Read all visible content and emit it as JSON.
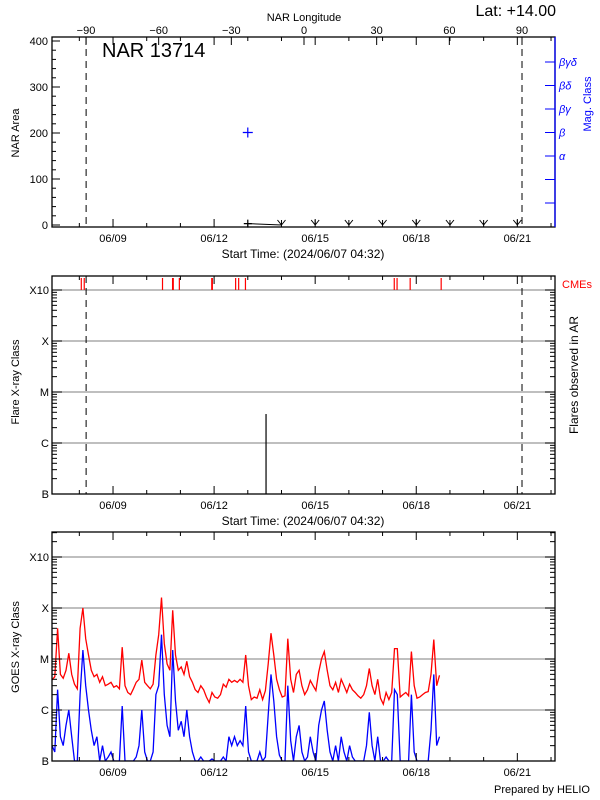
{
  "lat_label": "Lat: +14.00",
  "prepared_by": "Prepared by HELIO",
  "chart_data": [
    {
      "type": "scatter",
      "title": "NAR 13714",
      "top_axis_label": "NAR Longitude",
      "top_ticks": [
        -90,
        -60,
        -30,
        0,
        30,
        60,
        90
      ],
      "longitude_limits_marked": [
        -90,
        90
      ],
      "limb_crossing_times": [
        "2024-06-08T04:50",
        "2024-06-21T03:20"
      ],
      "ylabel": "NAR Area",
      "ylim": [
        -5,
        410
      ],
      "yticks": [
        0,
        100,
        200,
        300,
        400
      ],
      "right_axis_label": "Mag. Class",
      "right_axis_color": "#0000ff",
      "mag_classes": [
        "α",
        "β",
        "βγ",
        "βδ",
        "βγδ"
      ],
      "xlabel": "Start Time: (2024/06/07 04:32)",
      "xlim": [
        "2024-06-07T04:32",
        "2024-06-22T02:50"
      ],
      "xticks": [
        "06/09",
        "06/12",
        "06/15",
        "06/18",
        "06/21"
      ],
      "area_series": {
        "times": [
          "2024-06-13T00:00",
          "2024-06-14T00:00",
          "2024-06-15T00:00",
          "2024-06-16T00:00",
          "2024-06-17T00:00",
          "2024-06-18T00:00",
          "2024-06-19T00:00",
          "2024-06-20T00:00",
          "2024-06-21T00:00"
        ],
        "values": [
          3,
          0,
          0,
          0,
          0,
          0,
          0,
          0,
          0
        ]
      },
      "mag_series": {
        "times": [
          "2024-06-13T00:00"
        ],
        "values": [
          "β"
        ]
      }
    },
    {
      "type": "bar",
      "ylabel": "Flare X-ray Class",
      "right_label": "Flares observed in AR",
      "cme_label": "CMEs",
      "cme_color": "#ff0000",
      "y_scale": "log",
      "ylim_flux": [
        1e-07,
        0.0019
      ],
      "classes": [
        {
          "label": "B",
          "flux": 1e-07
        },
        {
          "label": "C",
          "flux": 1e-06
        },
        {
          "label": "M",
          "flux": 1e-05
        },
        {
          "label": "X",
          "flux": 0.0001
        },
        {
          "label": "X10",
          "flux": 0.001
        }
      ],
      "grid": true,
      "xlabel": "Start Time: (2024/06/07 04:32)",
      "xlim": [
        "2024-06-07T04:32",
        "2024-06-22T02:50"
      ],
      "xticks": [
        "06/09",
        "06/12",
        "06/15",
        "06/18",
        "06/21"
      ],
      "flares": [
        {
          "time": "2024-06-13T13:00",
          "flux": 3.7e-06
        }
      ],
      "cmes": [
        "2024-06-08T01:24",
        "2024-06-08T03:30",
        "2024-06-10T11:15",
        "2024-06-10T18:25",
        "2024-06-10T18:55",
        "2024-06-10T23:15",
        "2024-06-11T22:20",
        "2024-06-11T22:45",
        "2024-06-12T15:20",
        "2024-06-12T17:30",
        "2024-06-12T22:20",
        "2024-06-17T08:20",
        "2024-06-17T10:20",
        "2024-06-17T19:40",
        "2024-06-18T17:45"
      ]
    },
    {
      "type": "line",
      "ylabel": "GOES X-ray Class",
      "y_scale": "log",
      "ylim_flux": [
        1e-07,
        0.0031
      ],
      "classes": [
        {
          "label": "B",
          "flux": 1e-07
        },
        {
          "label": "C",
          "flux": 1e-06
        },
        {
          "label": "M",
          "flux": 1e-05
        },
        {
          "label": "X",
          "flux": 0.0001
        },
        {
          "label": "X10",
          "flux": 0.001
        }
      ],
      "grid": true,
      "xlim": [
        "2024-06-07T04:32",
        "2024-06-22T02:50"
      ],
      "xticks": [
        "06/09",
        "06/12",
        "06/15",
        "06/18",
        "06/21"
      ],
      "series_start": "2024-06-07T04:32",
      "series_step_hours": 2,
      "series": [
        {
          "color": "#ff0000",
          "values": [
            3.9e-06,
            4.5e-06,
            4e-05,
            5e-06,
            4.2e-06,
            6e-06,
            1.3e-05,
            5e-06,
            3.2e-06,
            2.6e-06,
            4e-05,
            0.0001,
            2.5e-05,
            1.2e-05,
            6e-06,
            4.5e-06,
            5e-06,
            3.5e-06,
            4.5e-06,
            3e-06,
            3.2e-06,
            3.5e-06,
            2.8e-06,
            3e-06,
            2.6e-06,
            1.7e-05,
            3e-06,
            2.2e-06,
            2e-06,
            2.6e-06,
            3.5e-06,
            4e-06,
            9.5e-06,
            3.5e-06,
            3e-06,
            2.6e-06,
            3.2e-06,
            1.2e-05,
            3e-05,
            0.00016,
            2e-05,
            8e-06,
            6e-06,
            9e-05,
            1.2e-05,
            6e-06,
            7e-06,
            5e-06,
            9e-06,
            4.5e-06,
            3.5e-06,
            2.5e-06,
            2.2e-06,
            3e-06,
            2.5e-06,
            1.8e-06,
            1.4e-06,
            2.2e-06,
            1.8e-06,
            1.7e-06,
            2e-06,
            3.2e-06,
            2.8e-06,
            4e-06,
            3.5e-06,
            3.8e-06,
            3.5e-06,
            4e-06,
            3.5e-06,
            1.2e-05,
            3e-06,
            1.6e-06,
            1.8e-06,
            1.7e-06,
            2.5e-06,
            1.6e-06,
            2.4e-06,
            8e-06,
            3.2e-05,
            1.2e-05,
            4e-06,
            2.5e-06,
            1.8e-06,
            1.9e-06,
            2.5e-05,
            4e-06,
            2.2e-06,
            5e-06,
            6e-06,
            3e-06,
            2e-06,
            2.5e-06,
            3.8e-06,
            3e-06,
            2.4e-06,
            5.5e-06,
            1e-05,
            1.4e-05,
            6e-06,
            3e-06,
            2.5e-06,
            3.5e-06,
            2.2e-06,
            4e-06,
            3e-06,
            2.2e-06,
            3.2e-06,
            2.5e-06,
            2.2e-06,
            1.9e-06,
            1.7e-06,
            2e-06,
            3e-06,
            6.5e-06,
            3e-06,
            2e-06,
            4e-06,
            1.7e-06,
            1.3e-06,
            2.2e-06,
            1.6e-06,
            2.2e-06,
            1.6e-05,
            1.6e-05,
            1.8e-06,
            2e-06,
            2.2e-06,
            1.9e-06,
            1.4e-05,
            3e-06,
            1.7e-06,
            1.8e-06,
            2e-06,
            2.2e-06,
            2.3e-06,
            5e-06,
            2.4e-05,
            3e-06,
            4.8e-06
          ]
        },
        {
          "color": "#0000ff",
          "values": [
            2e-07,
            1.5e-07,
            2.5e-06,
            3e-07,
            2e-07,
            5e-07,
            1e-06,
            3e-07,
            1e-07,
            6e-08,
            2e-06,
            1.5e-05,
            3e-06,
            1e-06,
            4e-07,
            2e-07,
            3e-07,
            1e-07,
            2e-07,
            8e-08,
            1.2e-07,
            1.5e-07,
            6e-08,
            8e-08,
            5e-08,
            1.2e-06,
            1e-07,
            5e-08,
            4e-08,
            8e-08,
            1.2e-07,
            2e-07,
            1e-06,
            1.5e-07,
            8e-08,
            6e-08,
            1.5e-07,
            2e-06,
            3e-06,
            3e-05,
            2e-06,
            5e-07,
            3e-07,
            1.5e-05,
            1.5e-06,
            4e-07,
            6e-07,
            3e-07,
            1e-06,
            3e-07,
            1.5e-07,
            6e-08,
            5e-08,
            1.2e-07,
            6e-08,
            4e-08,
            3e-08,
            1.1e-07,
            4e-08,
            3e-08,
            4e-08,
            1.2e-07,
            1e-07,
            3e-07,
            2e-07,
            3e-07,
            2e-07,
            2.5e-07,
            2e-07,
            1.2e-06,
            1.5e-07,
            3e-08,
            4e-08,
            3e-08,
            1.5e-07,
            3e-08,
            1.2e-07,
            8e-07,
            5e-06,
            1.5e-06,
            3e-07,
            1.3e-07,
            6e-08,
            5e-08,
            3e-06,
            2.5e-07,
            6e-08,
            3e-07,
            5e-07,
            1.5e-07,
            5e-08,
            1.2e-07,
            3e-07,
            1.5e-07,
            1e-07,
            5e-07,
            1e-06,
            1.5e-06,
            4e-07,
            1.5e-07,
            1e-07,
            2e-07,
            8e-08,
            3e-07,
            1.5e-07,
            8e-08,
            2e-07,
            1.2e-07,
            8e-08,
            5e-08,
            4e-08,
            6e-08,
            2e-07,
            9e-07,
            2e-07,
            7e-08,
            3e-07,
            5e-08,
            3e-08,
            1.2e-07,
            5e-08,
            1e-07,
            2.5e-06,
            2e-06,
            5e-08,
            8e-08,
            1e-07,
            6e-08,
            2e-06,
            1.5e-07,
            4e-08,
            5e-08,
            6e-08,
            8e-08,
            1e-07,
            4e-07,
            5e-06,
            2e-07,
            3e-07
          ]
        }
      ]
    }
  ]
}
